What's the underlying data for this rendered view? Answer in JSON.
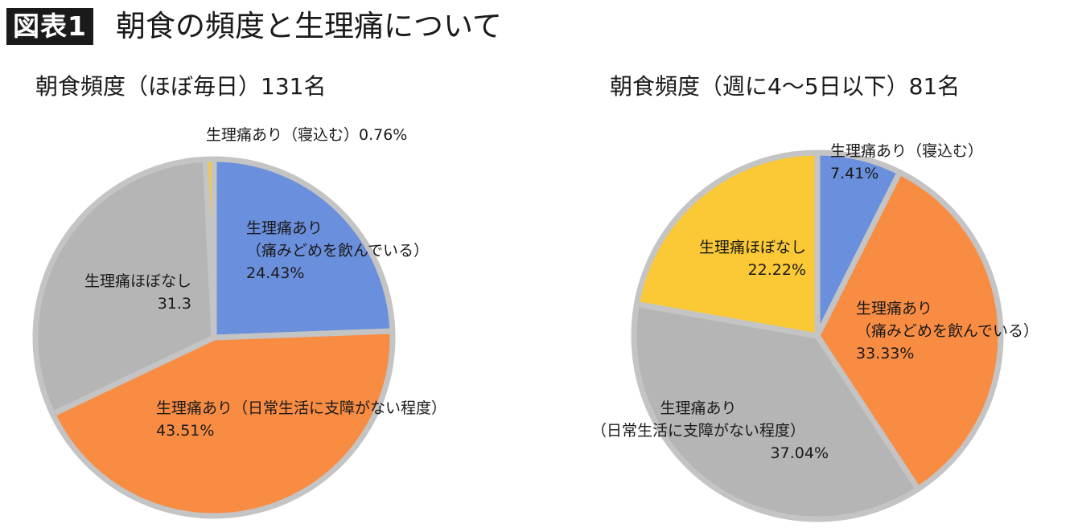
{
  "figure": {
    "badge": "図表1",
    "title": "朝食の頻度と生理痛について"
  },
  "colors": {
    "blue": "#6a8fdc",
    "orange": "#f98c43",
    "gray": "#b5b5b5",
    "yellow": "#fbc936",
    "border": "#c4c4c4"
  },
  "chart_data": [
    {
      "type": "pie",
      "title": "朝食頻度（ほぼ毎日）131名",
      "slices": [
        {
          "label_lines": [
            "生理痛あり",
            "（痛みどめを飲んでいる）"
          ],
          "value": 24.43,
          "value_text": "24.43%",
          "color": "#6a8fdc"
        },
        {
          "label_lines": [
            "生理痛あり（日常生活に支障がない程度）"
          ],
          "value": 43.51,
          "value_text": "43.51%",
          "color": "#f98c43"
        },
        {
          "label_lines": [
            "生理痛ほぼなし"
          ],
          "value": 31.3,
          "value_text": "31.3",
          "color": "#b5b5b5"
        },
        {
          "label_lines": [
            "生理痛あり（寝込む）0.76%"
          ],
          "value": 0.76,
          "value_text": "",
          "color": "#fbc936"
        }
      ]
    },
    {
      "type": "pie",
      "title": "朝食頻度（週に4〜5日以下）81名",
      "slices": [
        {
          "label_lines": [
            "生理痛あり（寝込む）"
          ],
          "value": 7.41,
          "value_text": "7.41%",
          "color": "#6a8fdc"
        },
        {
          "label_lines": [
            "生理痛あり",
            "（痛みどめを飲んでいる）"
          ],
          "value": 33.33,
          "value_text": "33.33%",
          "color": "#f98c43"
        },
        {
          "label_lines": [
            "生理痛あり",
            "（日常生活に支障がない程度）"
          ],
          "value": 37.04,
          "value_text": "37.04%",
          "color": "#b5b5b5"
        },
        {
          "label_lines": [
            "生理痛ほぼなし"
          ],
          "value": 22.22,
          "value_text": "22.22%",
          "color": "#fbc936"
        }
      ]
    }
  ]
}
